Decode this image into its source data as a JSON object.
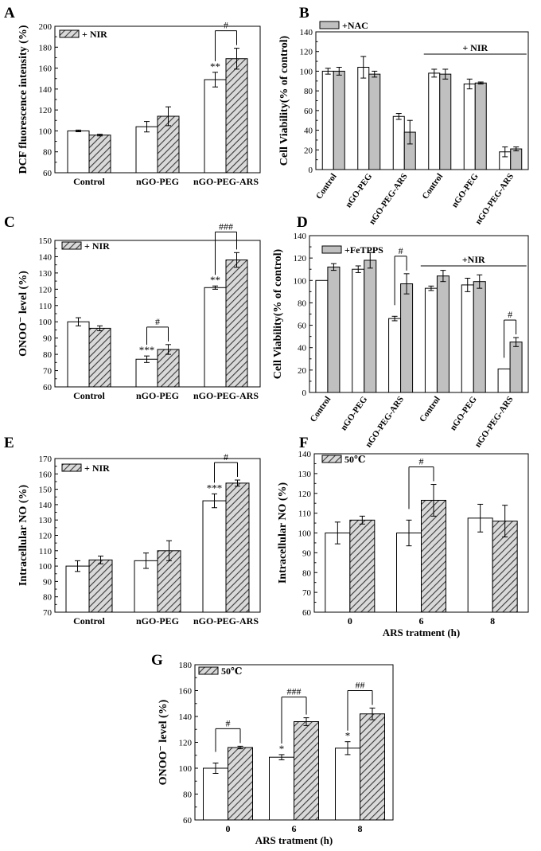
{
  "colors": {
    "open_bar": "#ffffff",
    "hatched_bar": "#a6a6a6",
    "filled_bar": "#c0c0c0",
    "ink": "#000000"
  },
  "chart_data": [
    {
      "panel": "A",
      "type": "bar",
      "pattern": "hatch",
      "title": "",
      "ylabel": "DCF fluorescence intensity (%)",
      "xlabel": "",
      "ylim": [
        60,
        200
      ],
      "yticks": [
        60,
        80,
        100,
        120,
        140,
        160,
        180,
        200
      ],
      "categories": [
        "Control",
        "nGO-PEG",
        "nGO-PEG-ARS"
      ],
      "series": [
        {
          "name": "",
          "values": [
            100,
            104,
            149
          ],
          "errors": [
            0.8,
            5,
            7
          ]
        },
        {
          "name": "+ NIR",
          "values": [
            96,
            114,
            169
          ],
          "errors": [
            0.8,
            9,
            10
          ]
        }
      ],
      "legend": [
        "+ NIR"
      ],
      "legend_position": "top-left",
      "annotations": [
        {
          "text": "**",
          "category": 2,
          "series": 0,
          "type": "star"
        },
        {
          "text": "#",
          "category": 2,
          "type": "bracket"
        }
      ]
    },
    {
      "panel": "B",
      "type": "bar",
      "pattern": "solid",
      "title": "",
      "ylabel": "Cell Viability(% of control)",
      "xlabel": "",
      "ylim": [
        0,
        140
      ],
      "yticks": [
        0,
        20,
        40,
        60,
        80,
        100,
        120,
        140
      ],
      "categories": [
        "Control",
        "nGO-PEG",
        "nGO-PEG-ARS",
        "Control",
        "nGO-PEG",
        "nGO-PEG-ARS"
      ],
      "series": [
        {
          "name": "",
          "values": [
            100,
            104,
            54,
            98,
            87,
            18
          ],
          "errors": [
            3,
            11,
            3,
            4,
            5,
            5
          ]
        },
        {
          "name": "+NAC",
          "values": [
            100,
            97,
            38,
            97,
            88,
            21
          ],
          "errors": [
            4,
            3,
            12,
            5,
            1,
            2
          ]
        }
      ],
      "legend": [
        "+NAC"
      ],
      "legend_position": "top-left",
      "annotations": [
        {
          "text": "+ NIR",
          "type": "group-line",
          "from": 3,
          "to": 5
        }
      ]
    },
    {
      "panel": "C",
      "type": "bar",
      "pattern": "hatch",
      "title": "",
      "ylabel": "ONOO⁻ level (%)",
      "xlabel": "",
      "ylim": [
        60,
        150
      ],
      "yticks": [
        60,
        70,
        80,
        90,
        100,
        110,
        120,
        130,
        140,
        150
      ],
      "categories": [
        "Control",
        "nGO-PEG",
        "nGO-PEG-ARS"
      ],
      "series": [
        {
          "name": "",
          "values": [
            100,
            77,
            121
          ],
          "errors": [
            2.5,
            2,
            1
          ]
        },
        {
          "name": "+ NIR",
          "values": [
            96,
            83,
            138
          ],
          "errors": [
            1.5,
            3,
            4.5
          ]
        }
      ],
      "legend": [
        "+ NIR"
      ],
      "legend_position": "top-left",
      "annotations": [
        {
          "text": "***",
          "category": 1,
          "series": 0,
          "type": "star"
        },
        {
          "text": "**",
          "category": 2,
          "series": 0,
          "type": "star"
        },
        {
          "text": "#",
          "category": 1,
          "type": "bracket"
        },
        {
          "text": "###",
          "category": 2,
          "type": "bracket"
        }
      ]
    },
    {
      "panel": "D",
      "type": "bar",
      "pattern": "solid",
      "title": "",
      "ylabel": "Cell Viability(% of control)",
      "xlabel": "",
      "ylim": [
        0,
        140
      ],
      "yticks": [
        0,
        20,
        40,
        60,
        80,
        100,
        120,
        140
      ],
      "categories": [
        "Control",
        "nGO-PEG",
        "nGO-PEG-ARS",
        "Control",
        "nGO-PEG",
        "nGO-PEG-ARS"
      ],
      "series": [
        {
          "name": "",
          "values": [
            100,
            110,
            66,
            93,
            96,
            21
          ],
          "errors": [
            0,
            3,
            2,
            2,
            6,
            0
          ]
        },
        {
          "name": "+FeTPPS",
          "values": [
            112,
            118,
            97,
            104,
            99,
            45
          ],
          "errors": [
            3,
            7,
            9,
            5,
            6,
            4
          ]
        }
      ],
      "legend": [
        "+FeTPPS"
      ],
      "legend_position": "top-left",
      "annotations": [
        {
          "text": "+NIR",
          "type": "group-line",
          "from": 3,
          "to": 5
        },
        {
          "text": "#",
          "category": 2,
          "type": "bracket"
        },
        {
          "text": "#",
          "category": 5,
          "type": "bracket"
        }
      ]
    },
    {
      "panel": "E",
      "type": "bar",
      "pattern": "hatch",
      "title": "",
      "ylabel": "Intracellular NO (%)",
      "xlabel": "",
      "ylim": [
        70,
        170
      ],
      "yticks": [
        70,
        80,
        90,
        100,
        110,
        120,
        130,
        140,
        150,
        160,
        170
      ],
      "categories": [
        "Control",
        "nGO-PEG",
        "nGO-PEG-ARS"
      ],
      "series": [
        {
          "name": "",
          "values": [
            100,
            103.5,
            142.5
          ],
          "errors": [
            3.5,
            5,
            4.5
          ]
        },
        {
          "name": "+ NIR",
          "values": [
            104,
            110,
            154
          ],
          "errors": [
            2.5,
            6.5,
            2
          ]
        }
      ],
      "legend": [
        "+ NIR"
      ],
      "legend_position": "top-left",
      "annotations": [
        {
          "text": "***",
          "category": 2,
          "series": 0,
          "type": "star"
        },
        {
          "text": "#",
          "category": 2,
          "type": "bracket"
        }
      ]
    },
    {
      "panel": "F",
      "type": "bar",
      "pattern": "hatch",
      "title": "",
      "ylabel": "Intracellular NO (%)",
      "xlabel": "ARS tratment (h)",
      "ylim": [
        60,
        140
      ],
      "yticks": [
        60,
        70,
        80,
        90,
        100,
        110,
        120,
        130,
        140
      ],
      "categories": [
        "0",
        "6",
        "8"
      ],
      "series": [
        {
          "name": "",
          "values": [
            100,
            100,
            107.5
          ],
          "errors": [
            5.5,
            6.5,
            7
          ]
        },
        {
          "name": "50℃",
          "values": [
            106.5,
            116.5,
            106
          ],
          "errors": [
            2,
            8,
            8
          ]
        }
      ],
      "legend": [
        "50℃"
      ],
      "legend_position": "top-left",
      "annotations": [
        {
          "text": "#",
          "category": 1,
          "type": "bracket"
        }
      ]
    },
    {
      "panel": "G",
      "type": "bar",
      "pattern": "hatch",
      "title": "",
      "ylabel": "ONOO⁻ level (%)",
      "xlabel": "ARS tratment (h)",
      "ylim": [
        60,
        180
      ],
      "yticks": [
        60,
        80,
        100,
        120,
        140,
        160,
        180
      ],
      "categories": [
        "0",
        "6",
        "8"
      ],
      "series": [
        {
          "name": "",
          "values": [
            100,
            108.5,
            115.5
          ],
          "errors": [
            4,
            2,
            5
          ]
        },
        {
          "name": "50℃",
          "values": [
            116,
            136,
            142
          ],
          "errors": [
            1,
            3,
            4.5
          ]
        }
      ],
      "legend": [
        "50℃"
      ],
      "legend_position": "top-left",
      "annotations": [
        {
          "text": "*",
          "category": 1,
          "series": 0,
          "type": "star"
        },
        {
          "text": "*",
          "category": 2,
          "series": 0,
          "type": "star"
        },
        {
          "text": "#",
          "category": 0,
          "type": "bracket"
        },
        {
          "text": "###",
          "category": 1,
          "type": "bracket"
        },
        {
          "text": "##",
          "category": 2,
          "type": "bracket"
        }
      ]
    }
  ]
}
